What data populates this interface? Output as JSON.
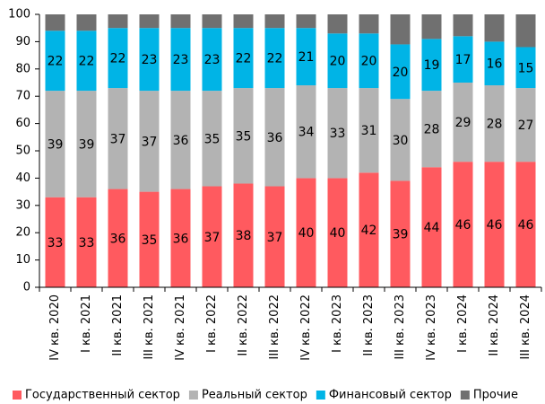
{
  "chart_data": {
    "type": "stacked_bar",
    "categories": [
      "IV кв. 2020",
      "I кв. 2021",
      "II кв. 2021",
      "III кв. 2021",
      "IV кв. 2021",
      "I кв. 2022",
      "II кв. 2022",
      "III кв. 2022",
      "IV кв. 2022",
      "I кв. 2023",
      "II кв. 2023",
      "III кв. 2023",
      "IV кв. 2023",
      "I кв. 2024",
      "II кв. 2024",
      "III кв. 2024"
    ],
    "series": [
      {
        "name": "Государственный сектор",
        "color": "#ff5a5f",
        "labels": true,
        "values": [
          33,
          33,
          36,
          35,
          36,
          37,
          38,
          37,
          40,
          40,
          42,
          39,
          44,
          46,
          46,
          46
        ]
      },
      {
        "name": "Реальный сектор",
        "color": "#b3b3b3",
        "labels": true,
        "values": [
          39,
          39,
          37,
          37,
          36,
          35,
          35,
          36,
          34,
          33,
          31,
          30,
          28,
          29,
          28,
          27
        ]
      },
      {
        "name": "Финансовый сектор",
        "color": "#00b4e6",
        "labels": true,
        "values": [
          22,
          22,
          22,
          23,
          23,
          23,
          22,
          22,
          21,
          20,
          20,
          20,
          19,
          17,
          16,
          15
        ]
      },
      {
        "name": "Прочие",
        "color": "#707070",
        "labels": false,
        "values": [
          6,
          6,
          5,
          5,
          5,
          5,
          5,
          5,
          5,
          7,
          7,
          11,
          9,
          8,
          10,
          12
        ]
      }
    ],
    "ylim": [
      0,
      100
    ],
    "yticks": [
      0,
      10,
      20,
      30,
      40,
      50,
      60,
      70,
      80,
      90,
      100
    ],
    "grid": false,
    "legend": "bottom"
  }
}
